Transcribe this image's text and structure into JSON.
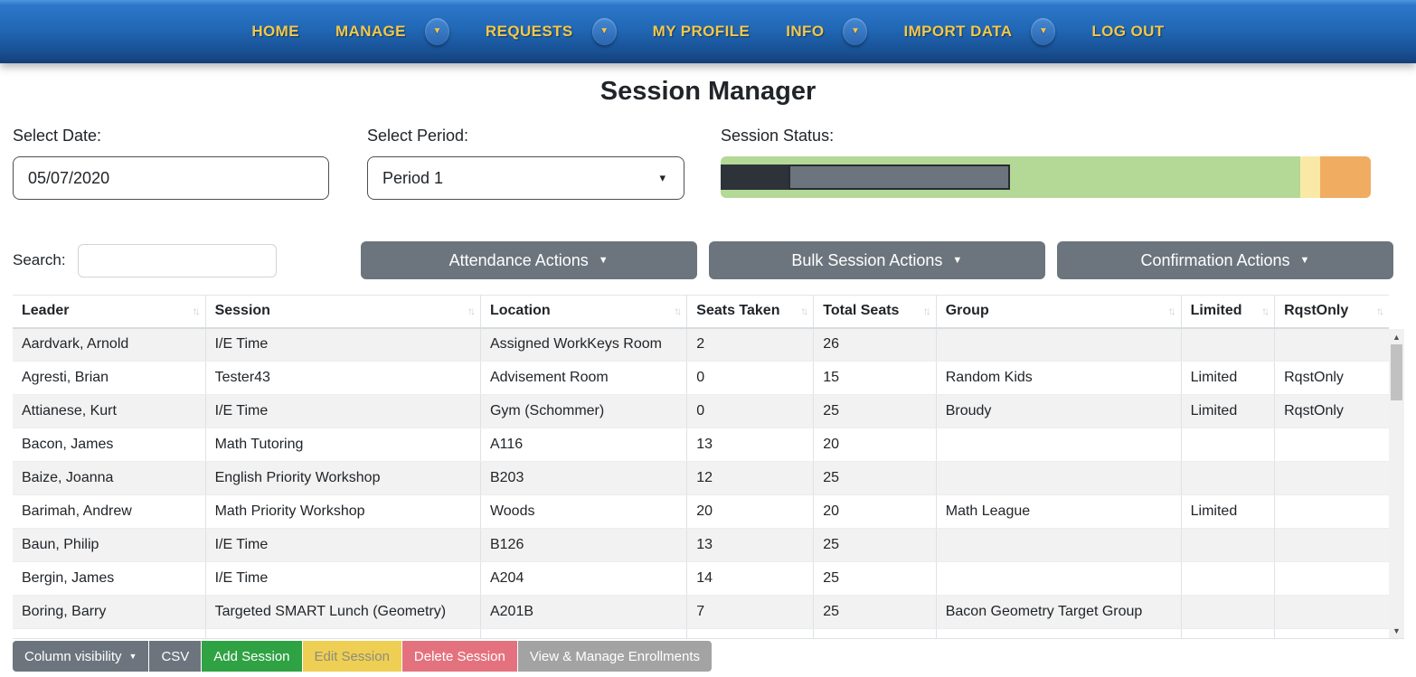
{
  "navbar": {
    "items": [
      {
        "label": "HOME",
        "dropdown": false
      },
      {
        "label": "MANAGE",
        "dropdown": true
      },
      {
        "label": "REQUESTS",
        "dropdown": true
      },
      {
        "label": "MY PROFILE",
        "dropdown": false
      },
      {
        "label": "INFO",
        "dropdown": true
      },
      {
        "label": "IMPORT DATA",
        "dropdown": true
      },
      {
        "label": "LOG OUT",
        "dropdown": false
      }
    ],
    "text_color": "#f2c84b"
  },
  "page_title": "Session Manager",
  "filters": {
    "date_label": "Select Date:",
    "date_value": "05/07/2020",
    "period_label": "Select Period:",
    "period_value": "Period 1",
    "status_label": "Session Status:",
    "status_bar": {
      "track_segments": [
        {
          "name": "green",
          "color": "#b4d895",
          "percent": 89.2
        },
        {
          "name": "yellow",
          "color": "#fae9a6",
          "percent": 3.0
        },
        {
          "name": "orange",
          "color": "#f0ac60",
          "percent": 7.8
        }
      ],
      "fill_segments": [
        {
          "name": "dark",
          "color": "#2d3339",
          "percent": 10.5
        },
        {
          "name": "gray",
          "color": "#6c757d",
          "percent": 34.0
        }
      ]
    }
  },
  "toolbar": {
    "search_label": "Search:",
    "search_value": "",
    "buttons": [
      "Attendance Actions",
      "Bulk Session Actions",
      "Confirmation Actions"
    ],
    "button_color": "#6c757d"
  },
  "table": {
    "columns": [
      "Leader",
      "Session",
      "Location",
      "Seats Taken",
      "Total Seats",
      "Group",
      "Limited",
      "RqstOnly"
    ],
    "column_widths_percent": [
      14.0,
      20.0,
      15.0,
      9.2,
      8.9,
      17.8,
      6.8,
      8.3
    ],
    "rows": [
      [
        "Aardvark, Arnold",
        "I/E Time",
        "Assigned WorkKeys Room",
        "2",
        "26",
        "",
        "",
        ""
      ],
      [
        "Agresti, Brian",
        "Tester43",
        "Advisement Room",
        "0",
        "15",
        "Random Kids",
        "Limited",
        "RqstOnly"
      ],
      [
        "Attianese, Kurt",
        "I/E Time",
        "Gym (Schommer)",
        "0",
        "25",
        "Broudy",
        "Limited",
        "RqstOnly"
      ],
      [
        "Bacon, James",
        "Math Tutoring",
        "A116",
        "13",
        "20",
        "",
        "",
        ""
      ],
      [
        "Baize, Joanna",
        "English Priority Workshop",
        "B203",
        "12",
        "25",
        "",
        "",
        ""
      ],
      [
        "Barimah, Andrew",
        "Math Priority Workshop",
        "Woods",
        "20",
        "20",
        "Math League",
        "Limited",
        ""
      ],
      [
        "Baun, Philip",
        "I/E Time",
        "B126",
        "13",
        "25",
        "",
        "",
        ""
      ],
      [
        "Bergin, James",
        "I/E Time",
        "A204",
        "14",
        "25",
        "",
        "",
        ""
      ],
      [
        "Boring, Barry",
        "Targeted SMART Lunch (Geometry)",
        "A201B",
        "7",
        "25",
        "Bacon Geometry Target Group",
        "",
        ""
      ],
      [
        "",
        "",
        "",
        "",
        "",
        "",
        "",
        ""
      ]
    ]
  },
  "footer": {
    "buttons": [
      {
        "label": "Column visibility",
        "style": "gray",
        "caret": true,
        "disabled": false
      },
      {
        "label": "CSV",
        "style": "gray",
        "caret": false,
        "disabled": false
      },
      {
        "label": "Add Session",
        "style": "green",
        "caret": false,
        "disabled": false
      },
      {
        "label": "Edit Session",
        "style": "yellow",
        "caret": false,
        "disabled": true
      },
      {
        "label": "Delete Session",
        "style": "red",
        "caret": false,
        "disabled": false
      },
      {
        "label": "View & Manage Enrollments",
        "style": "lightgray",
        "caret": false,
        "disabled": false
      }
    ],
    "colors": {
      "gray": "#6c757d",
      "green": "#2fa244",
      "yellow": "#efcf53",
      "red": "#e4727e",
      "lightgray": "#a3a3a3"
    },
    "disabled_text_color": "#8c8c80"
  }
}
